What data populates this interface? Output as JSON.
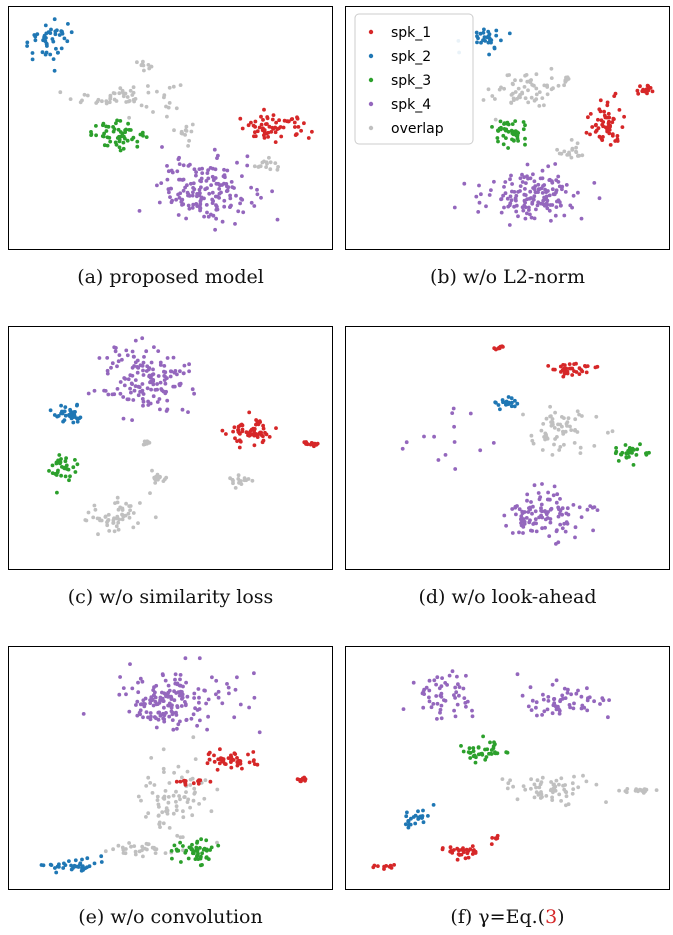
{
  "colors": {
    "spk_1": "#d62728",
    "spk_2": "#1f77b4",
    "spk_3": "#2ca02c",
    "spk_4": "#9467bd",
    "overlap": "#c0c0c0"
  },
  "legend": {
    "placement": "top-left of panel (b)",
    "entries": [
      {
        "key": "spk_1",
        "label": "spk_1"
      },
      {
        "key": "spk_2",
        "label": "spk_2"
      },
      {
        "key": "spk_3",
        "label": "spk_3"
      },
      {
        "key": "spk_4",
        "label": "spk_4"
      },
      {
        "key": "overlap",
        "label": "overlap"
      }
    ]
  },
  "captions": [
    {
      "text": "(a) proposed model"
    },
    {
      "text": "(b) w/o L2-norm"
    },
    {
      "text": "(c) w/o similarity loss"
    },
    {
      "text": "(d) w/o look-ahead"
    },
    {
      "text": "(e) w/o convolution"
    },
    {
      "prefix": "(f) γ=Eq.(",
      "ref": "3",
      "suffix": ")"
    }
  ],
  "chart_data": [
    {
      "type": "scatter",
      "panel": "a",
      "axes": "hidden",
      "grid": false,
      "xlim": [
        0,
        1
      ],
      "ylim": [
        0,
        1
      ],
      "clusters": [
        {
          "series": "spk_2",
          "cx": 0.1,
          "cy": 0.89,
          "rx": 0.08,
          "ry": 0.08,
          "n": 45
        },
        {
          "series": "spk_3",
          "cx": 0.33,
          "cy": 0.47,
          "rx": 0.08,
          "ry": 0.05,
          "n": 55
        },
        {
          "series": "spk_1",
          "cx": 0.84,
          "cy": 0.5,
          "rx": 0.11,
          "ry": 0.05,
          "n": 65
        },
        {
          "series": "spk_4",
          "cx": 0.62,
          "cy": 0.22,
          "rx": 0.14,
          "ry": 0.13,
          "n": 170
        },
        {
          "series": "overlap",
          "cx": 0.36,
          "cy": 0.64,
          "rx": 0.16,
          "ry": 0.06,
          "n": 55
        },
        {
          "series": "overlap",
          "cx": 0.41,
          "cy": 0.78,
          "rx": 0.03,
          "ry": 0.02,
          "n": 12
        },
        {
          "series": "overlap",
          "cx": 0.55,
          "cy": 0.48,
          "rx": 0.02,
          "ry": 0.05,
          "n": 12
        },
        {
          "series": "overlap",
          "cx": 0.81,
          "cy": 0.34,
          "rx": 0.03,
          "ry": 0.03,
          "n": 15
        }
      ]
    },
    {
      "type": "scatter",
      "panel": "b",
      "axes": "hidden",
      "grid": false,
      "xlim": [
        0,
        1
      ],
      "ylim": [
        0,
        1
      ],
      "clusters": [
        {
          "series": "spk_2",
          "cx": 0.43,
          "cy": 0.9,
          "rx": 0.05,
          "ry": 0.05,
          "n": 30
        },
        {
          "series": "spk_3",
          "cx": 0.51,
          "cy": 0.48,
          "rx": 0.05,
          "ry": 0.06,
          "n": 45
        },
        {
          "series": "spk_1",
          "cx": 0.82,
          "cy": 0.52,
          "rx": 0.05,
          "ry": 0.09,
          "n": 60
        },
        {
          "series": "spk_1",
          "cx": 0.95,
          "cy": 0.67,
          "rx": 0.03,
          "ry": 0.02,
          "n": 18
        },
        {
          "series": "spk_4",
          "cx": 0.58,
          "cy": 0.2,
          "rx": 0.15,
          "ry": 0.1,
          "n": 150
        },
        {
          "series": "overlap",
          "cx": 0.56,
          "cy": 0.67,
          "rx": 0.1,
          "ry": 0.08,
          "n": 60
        },
        {
          "series": "overlap",
          "cx": 0.71,
          "cy": 0.4,
          "rx": 0.04,
          "ry": 0.04,
          "n": 20
        },
        {
          "series": "overlap",
          "cx": 0.69,
          "cy": 0.71,
          "rx": 0.01,
          "ry": 0.02,
          "n": 8
        }
      ]
    },
    {
      "type": "scatter",
      "panel": "c",
      "axes": "hidden",
      "grid": false,
      "xlim": [
        0,
        1
      ],
      "ylim": [
        0,
        1
      ],
      "clusters": [
        {
          "series": "spk_4",
          "cx": 0.42,
          "cy": 0.8,
          "rx": 0.13,
          "ry": 0.14,
          "n": 150
        },
        {
          "series": "spk_2",
          "cx": 0.17,
          "cy": 0.65,
          "rx": 0.05,
          "ry": 0.04,
          "n": 35
        },
        {
          "series": "spk_3",
          "cx": 0.15,
          "cy": 0.41,
          "rx": 0.04,
          "ry": 0.06,
          "n": 35
        },
        {
          "series": "spk_1",
          "cx": 0.76,
          "cy": 0.57,
          "rx": 0.07,
          "ry": 0.05,
          "n": 60
        },
        {
          "series": "spk_1",
          "cx": 0.96,
          "cy": 0.52,
          "rx": 0.02,
          "ry": 0.01,
          "n": 14
        },
        {
          "series": "overlap",
          "cx": 0.33,
          "cy": 0.2,
          "rx": 0.1,
          "ry": 0.07,
          "n": 55
        },
        {
          "series": "overlap",
          "cx": 0.46,
          "cy": 0.37,
          "rx": 0.03,
          "ry": 0.03,
          "n": 14
        },
        {
          "series": "overlap",
          "cx": 0.72,
          "cy": 0.35,
          "rx": 0.04,
          "ry": 0.03,
          "n": 16
        },
        {
          "series": "overlap",
          "cx": 0.42,
          "cy": 0.52,
          "rx": 0.02,
          "ry": 0.01,
          "n": 8
        }
      ]
    },
    {
      "type": "scatter",
      "panel": "d",
      "axes": "hidden",
      "grid": false,
      "xlim": [
        0,
        1
      ],
      "ylim": [
        0,
        1
      ],
      "clusters": [
        {
          "series": "spk_1",
          "cx": 0.71,
          "cy": 0.85,
          "rx": 0.06,
          "ry": 0.03,
          "n": 35
        },
        {
          "series": "spk_1",
          "cx": 0.47,
          "cy": 0.95,
          "rx": 0.02,
          "ry": 0.01,
          "n": 8
        },
        {
          "series": "spk_2",
          "cx": 0.5,
          "cy": 0.7,
          "rx": 0.04,
          "ry": 0.03,
          "n": 20
        },
        {
          "series": "spk_3",
          "cx": 0.91,
          "cy": 0.48,
          "rx": 0.05,
          "ry": 0.03,
          "n": 30
        },
        {
          "series": "spk_4",
          "cx": 0.62,
          "cy": 0.2,
          "rx": 0.12,
          "ry": 0.1,
          "n": 110
        },
        {
          "series": "spk_4",
          "cx": 0.28,
          "cy": 0.55,
          "rx": 0.15,
          "ry": 0.12,
          "n": 14
        },
        {
          "series": "overlap",
          "cx": 0.66,
          "cy": 0.57,
          "rx": 0.12,
          "ry": 0.1,
          "n": 60
        }
      ]
    },
    {
      "type": "scatter",
      "panel": "e",
      "axes": "hidden",
      "grid": false,
      "xlim": [
        0,
        1
      ],
      "ylim": [
        0,
        1
      ],
      "clusters": [
        {
          "series": "spk_4",
          "cx": 0.5,
          "cy": 0.8,
          "rx": 0.18,
          "ry": 0.12,
          "n": 170
        },
        {
          "series": "spk_1",
          "cx": 0.7,
          "cy": 0.53,
          "rx": 0.08,
          "ry": 0.04,
          "n": 45
        },
        {
          "series": "spk_1",
          "cx": 0.57,
          "cy": 0.44,
          "rx": 0.04,
          "ry": 0.02,
          "n": 14
        },
        {
          "series": "spk_1",
          "cx": 0.93,
          "cy": 0.45,
          "rx": 0.02,
          "ry": 0.01,
          "n": 10
        },
        {
          "series": "spk_3",
          "cx": 0.58,
          "cy": 0.13,
          "rx": 0.07,
          "ry": 0.05,
          "n": 50
        },
        {
          "series": "spk_2",
          "cx": 0.18,
          "cy": 0.07,
          "rx": 0.09,
          "ry": 0.03,
          "n": 35
        },
        {
          "series": "overlap",
          "cx": 0.52,
          "cy": 0.38,
          "rx": 0.1,
          "ry": 0.18,
          "n": 80
        },
        {
          "series": "overlap",
          "cx": 0.38,
          "cy": 0.14,
          "rx": 0.1,
          "ry": 0.03,
          "n": 30
        }
      ]
    },
    {
      "type": "scatter",
      "panel": "f",
      "axes": "hidden",
      "grid": false,
      "xlim": [
        0,
        1
      ],
      "ylim": [
        0,
        1
      ],
      "clusters": [
        {
          "series": "spk_4",
          "cx": 0.28,
          "cy": 0.82,
          "rx": 0.1,
          "ry": 0.1,
          "n": 55
        },
        {
          "series": "spk_4",
          "cx": 0.68,
          "cy": 0.8,
          "rx": 0.12,
          "ry": 0.06,
          "n": 60
        },
        {
          "series": "spk_3",
          "cx": 0.42,
          "cy": 0.58,
          "rx": 0.07,
          "ry": 0.04,
          "n": 40
        },
        {
          "series": "overlap",
          "cx": 0.63,
          "cy": 0.41,
          "rx": 0.14,
          "ry": 0.06,
          "n": 60
        },
        {
          "series": "overlap",
          "cx": 0.92,
          "cy": 0.4,
          "rx": 0.05,
          "ry": 0.01,
          "n": 18
        },
        {
          "series": "spk_2",
          "cx": 0.2,
          "cy": 0.28,
          "rx": 0.04,
          "ry": 0.04,
          "n": 25
        },
        {
          "series": "spk_1",
          "cx": 0.34,
          "cy": 0.13,
          "rx": 0.07,
          "ry": 0.02,
          "n": 35
        },
        {
          "series": "spk_1",
          "cx": 0.1,
          "cy": 0.06,
          "rx": 0.03,
          "ry": 0.01,
          "n": 10
        },
        {
          "series": "spk_1",
          "cx": 0.46,
          "cy": 0.19,
          "rx": 0.01,
          "ry": 0.01,
          "n": 5
        }
      ]
    }
  ]
}
